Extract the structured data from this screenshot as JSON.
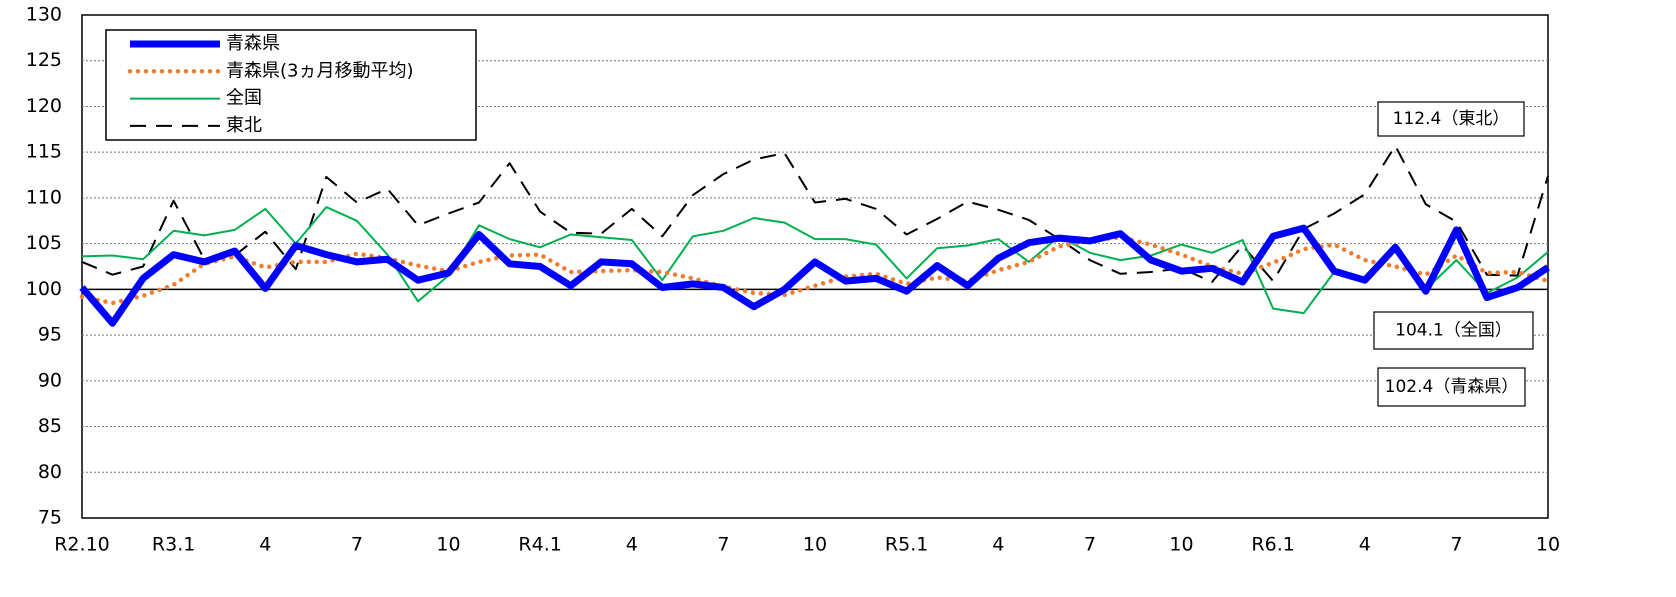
{
  "chart_data": {
    "type": "line",
    "categories": [
      "R2.10",
      null,
      null,
      "R3.1",
      null,
      null,
      "4",
      null,
      null,
      "7",
      null,
      null,
      "10",
      null,
      null,
      "R4.1",
      null,
      null,
      "4",
      null,
      null,
      "7",
      null,
      null,
      "10",
      null,
      null,
      "R5.1",
      null,
      null,
      "4",
      null,
      null,
      "7",
      null,
      null,
      "10",
      null,
      null,
      "R6.1",
      null,
      null,
      "4",
      null,
      null,
      "7",
      null,
      null,
      "10"
    ],
    "series": [
      {
        "name": "青森県",
        "color": "#0000ff",
        "line_style": "solid",
        "line_width": 7,
        "values": [
          100.2,
          96.3,
          101.2,
          103.8,
          103.0,
          104.2,
          100.1,
          104.8,
          103.8,
          103.0,
          103.3,
          101.0,
          101.8,
          106.0,
          102.8,
          102.5,
          100.4,
          103.0,
          102.8,
          100.2,
          100.6,
          100.2,
          98.1,
          100.0,
          103.0,
          100.9,
          101.2,
          99.8,
          102.6,
          100.4,
          103.4,
          105.1,
          105.6,
          105.3,
          106.1,
          103.2,
          102.0,
          102.3,
          100.8,
          105.8,
          106.7,
          102.0,
          101.0,
          104.6,
          99.8,
          106.5,
          99.1,
          100.2,
          102.4
        ]
      },
      {
        "name": "青森県(3ヵ月移動平均)",
        "color": "#ed7d31",
        "line_style": "dotted",
        "line_width": 4.5,
        "values": [
          99.2,
          98.5,
          99.3,
          100.5,
          102.8,
          103.6,
          102.4,
          103.0,
          103.0,
          103.9,
          103.4,
          102.6,
          102.0,
          103.0,
          103.7,
          103.8,
          101.9,
          102.0,
          102.1,
          101.9,
          101.2,
          100.3,
          99.6,
          99.4,
          100.4,
          101.4,
          101.7,
          100.6,
          101.3,
          100.9,
          102.1,
          103.0,
          104.7,
          105.3,
          105.7,
          104.9,
          103.8,
          102.5,
          101.7,
          102.9,
          104.4,
          104.9,
          103.2,
          102.5,
          101.6,
          103.7,
          101.8,
          101.9,
          100.9
        ]
      },
      {
        "name": "全国",
        "color": "#00b050",
        "line_style": "solid",
        "line_width": 2,
        "values": [
          103.6,
          103.7,
          103.3,
          106.4,
          105.9,
          106.5,
          108.8,
          105.0,
          109.0,
          107.5,
          103.8,
          98.7,
          101.5,
          107.0,
          105.5,
          104.6,
          106.0,
          105.7,
          105.4,
          101.0,
          105.8,
          106.4,
          107.8,
          107.3,
          105.5,
          105.5,
          104.9,
          101.2,
          104.5,
          104.8,
          105.5,
          103.0,
          105.8,
          104.0,
          103.2,
          103.7,
          104.9,
          104.0,
          105.4,
          97.9,
          97.4,
          101.9,
          101.0,
          104.3,
          100.0,
          103.2,
          99.6,
          101.3,
          104.1
        ]
      },
      {
        "name": "東北",
        "color": "#000000",
        "line_style": "dashed",
        "line_width": 2,
        "values": [
          103.0,
          101.6,
          102.5,
          109.7,
          103.3,
          103.7,
          106.3,
          102.2,
          112.3,
          109.5,
          111.0,
          107.0,
          108.3,
          109.5,
          113.8,
          108.5,
          106.2,
          106.1,
          108.8,
          105.8,
          110.3,
          112.6,
          114.2,
          114.9,
          109.5,
          109.9,
          108.8,
          106.0,
          107.7,
          109.6,
          108.7,
          107.6,
          105.5,
          103.2,
          101.7,
          101.9,
          102.3,
          100.8,
          104.8,
          100.9,
          106.6,
          108.3,
          110.4,
          115.7,
          109.3,
          107.4,
          101.6,
          101.5,
          112.4
        ]
      }
    ],
    "ylim": [
      75,
      130
    ],
    "yticks": [
      75,
      80,
      85,
      90,
      95,
      100,
      105,
      110,
      115,
      120,
      125,
      130
    ],
    "grid": true,
    "reference_line": 100,
    "legend": "upper left",
    "annotations": [
      "112.4（東北）",
      "104.1（全国）",
      "102.4（青森県）"
    ]
  }
}
